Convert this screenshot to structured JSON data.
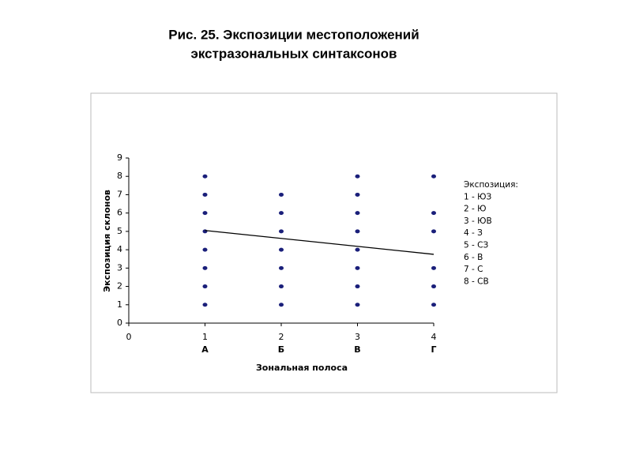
{
  "chart_data": {
    "type": "scatter",
    "title": [
      "Рис. 25. Экспозиции местоположений",
      "экстразональных синтаксонов"
    ],
    "x_label": "Зональная полоса",
    "y_label": "Экспозиция склонов",
    "xlim": [
      0,
      4
    ],
    "xticks": [
      0,
      1,
      2,
      3,
      4
    ],
    "x_category_labels": [
      {
        "value": 1,
        "label": "А"
      },
      {
        "value": 2,
        "label": "Б"
      },
      {
        "value": 3,
        "label": "В"
      },
      {
        "value": 4,
        "label": "Г"
      }
    ],
    "ylim": [
      0,
      9
    ],
    "yticks": [
      0,
      1,
      2,
      3,
      4,
      5,
      6,
      7,
      8,
      9
    ],
    "series": [
      {
        "color": "#1a1f7a",
        "x": [
          1,
          1,
          1,
          1,
          1,
          1,
          1,
          1,
          2,
          2,
          2,
          2,
          2,
          2,
          2,
          3,
          3,
          3,
          3,
          3,
          3,
          3,
          3,
          4,
          4,
          4,
          4,
          4,
          4
        ],
        "values": [
          1,
          2,
          3,
          4,
          5,
          6,
          7,
          8,
          1,
          2,
          3,
          4,
          5,
          6,
          7,
          1,
          2,
          3,
          4,
          5,
          6,
          7,
          8,
          1,
          2,
          3,
          5,
          6,
          8
        ]
      }
    ],
    "trendline": {
      "color": "#000000",
      "x": [
        1,
        4
      ],
      "values": [
        5.05,
        3.75
      ]
    },
    "legend_text": [
      "Экспозиция:",
      "1 - ЮЗ",
      "2 - Ю",
      "3 - ЮВ",
      "4 - З",
      "5 - СЗ",
      "6 - В",
      "7 - С",
      "8 - СВ"
    ]
  }
}
